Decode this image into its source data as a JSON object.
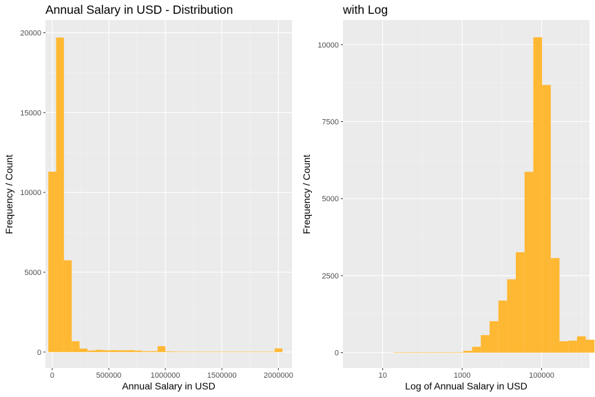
{
  "chart_data": [
    {
      "type": "bar",
      "subtype": "histogram",
      "title": "Annual Salary in USD - Distribution",
      "xlabel": "Annual Salary in USD",
      "ylabel": "Frequency / Count",
      "xlim": [
        -60000,
        2120000
      ],
      "ylim": [
        -1000,
        20800
      ],
      "x_scale": "linear",
      "xticks": [
        0,
        500000,
        1000000,
        1500000,
        2000000
      ],
      "xtick_labels": [
        "0",
        "500000",
        "1000000",
        "1500000",
        "2000000"
      ],
      "yticks": [
        0,
        5000,
        10000,
        15000,
        20000
      ],
      "ytick_labels": [
        "0",
        "5000",
        "10000",
        "15000",
        "20000"
      ],
      "bin_width": 69000,
      "x": [
        0,
        69000,
        138000,
        207000,
        276000,
        345000,
        414000,
        483000,
        552000,
        621000,
        690000,
        759000,
        828000,
        897000,
        966000,
        1035000,
        1104000,
        1173000,
        1242000,
        1311000,
        1380000,
        1449000,
        1518000,
        1587000,
        1656000,
        1725000,
        1794000,
        1863000,
        1932000,
        2001000
      ],
      "values": [
        11300,
        19700,
        5750,
        680,
        220,
        100,
        140,
        110,
        120,
        110,
        120,
        95,
        55,
        60,
        370,
        40,
        30,
        25,
        20,
        10,
        0,
        15,
        10,
        20,
        0,
        10,
        0,
        5,
        0,
        230
      ],
      "fill": "#FFB833",
      "grid": true,
      "legend": "none"
    },
    {
      "type": "bar",
      "subtype": "histogram",
      "title": "with Log",
      "xlabel": "Log of Annual Salary in USD",
      "ylabel": "Frequency / Count",
      "xlim": [
        1,
        1600000
      ],
      "ylim": [
        -500,
        10800
      ],
      "x_scale": "log10",
      "xticks": [
        10,
        1000,
        100000
      ],
      "xtick_labels": [
        "10",
        "1000",
        "100000"
      ],
      "yticks": [
        0,
        2500,
        5000,
        7500,
        10000
      ],
      "ytick_labels": [
        "0",
        "2500",
        "5000",
        "7500",
        "10000"
      ],
      "bin_width_log10": 0.22,
      "x": [
        24,
        40,
        66,
        110,
        183,
        302,
        501,
        832,
        1380,
        2290,
        3800,
        6310,
        10500,
        17400,
        28800,
        47900,
        79400,
        132000,
        219000,
        363000,
        603000,
        1000000
      ],
      "values": [
        5,
        5,
        5,
        5,
        5,
        5,
        10,
        10,
        60,
        190,
        570,
        1020,
        1690,
        2380,
        3260,
        5870,
        10240,
        8690,
        3070,
        370,
        390,
        530
      ],
      "extra_bars": {
        "x": [
          1660000
        ],
        "values": [
          420
        ]
      },
      "fill": "#FFB833",
      "grid": true,
      "legend": "none"
    }
  ]
}
